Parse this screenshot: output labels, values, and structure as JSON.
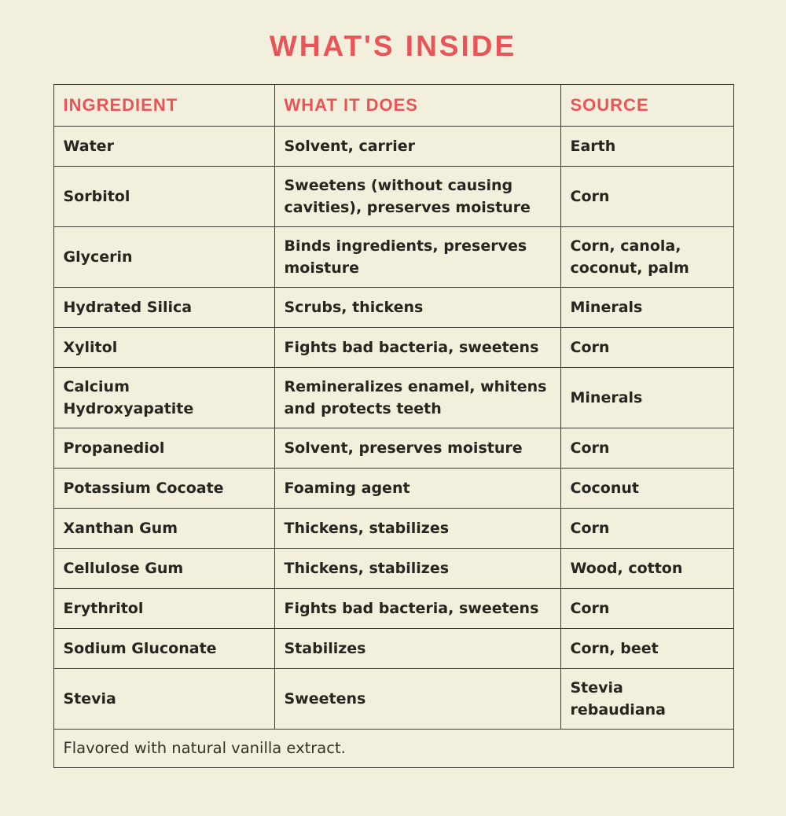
{
  "page": {
    "background_color": "#f2f0dd",
    "accent_color": "#ea5458",
    "text_color": "#26251f",
    "border_color": "#3c3b31"
  },
  "title": "WHAT'S INSIDE",
  "table": {
    "headers": [
      "INGREDIENT",
      "WHAT IT DOES",
      "SOURCE"
    ],
    "rows": [
      {
        "ingredient": "Water",
        "what_it_does": "Solvent, carrier",
        "source": "Earth"
      },
      {
        "ingredient": "Sorbitol",
        "what_it_does": "Sweetens (without causing cavities), preserves moisture",
        "source": "Corn"
      },
      {
        "ingredient": "Glycerin",
        "what_it_does": "Binds ingredients, preserves moisture",
        "source": "Corn, canola, coconut, palm"
      },
      {
        "ingredient": "Hydrated Silica",
        "what_it_does": "Scrubs, thickens",
        "source": "Minerals"
      },
      {
        "ingredient": "Xylitol",
        "what_it_does": "Fights bad bacteria, sweetens",
        "source": "Corn"
      },
      {
        "ingredient": "Calcium Hydroxyapatite",
        "what_it_does": "Remineralizes enamel, whitens and protects teeth",
        "source": "Minerals"
      },
      {
        "ingredient": "Propanediol",
        "what_it_does": "Solvent, preserves moisture",
        "source": "Corn"
      },
      {
        "ingredient": "Potassium Cocoate",
        "what_it_does": "Foaming agent",
        "source": "Coconut"
      },
      {
        "ingredient": "Xanthan Gum",
        "what_it_does": "Thickens, stabilizes",
        "source": "Corn"
      },
      {
        "ingredient": "Cellulose Gum",
        "what_it_does": "Thickens, stabilizes",
        "source": "Wood, cotton"
      },
      {
        "ingredient": "Erythritol",
        "what_it_does": "Fights bad bacteria, sweetens",
        "source": "Corn"
      },
      {
        "ingredient": "Sodium Gluconate",
        "what_it_does": "Stabilizes",
        "source": "Corn, beet"
      },
      {
        "ingredient": "Stevia",
        "what_it_does": "Sweetens",
        "source": "Stevia rebaudiana"
      }
    ],
    "footer": "Flavored with natural vanilla extract."
  }
}
